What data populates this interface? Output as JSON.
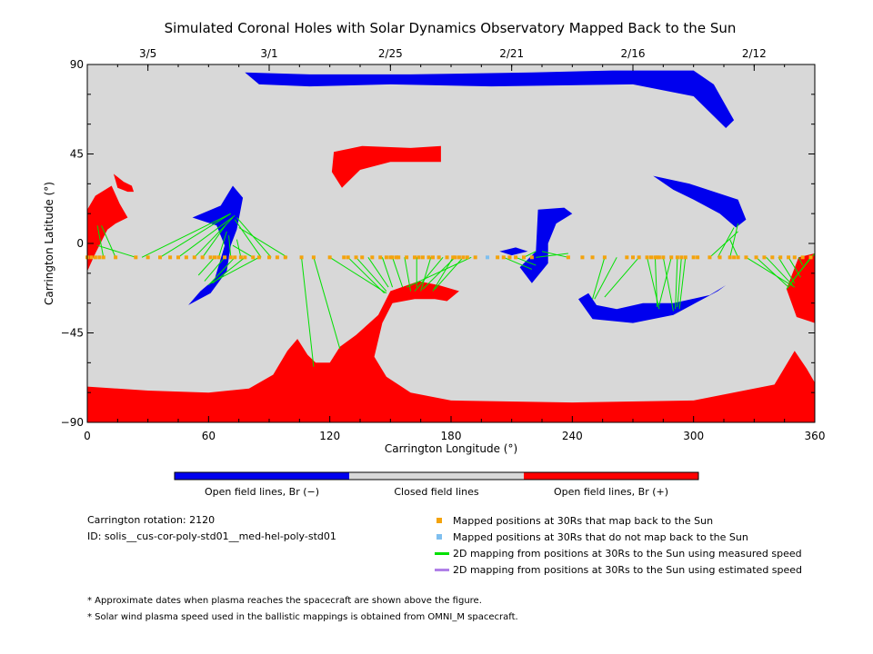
{
  "chart_data": {
    "type": "map",
    "title": "Simulated Coronal Holes with Solar Dynamics Observatory Mapped Back to the Sun",
    "xlabel": "Carrington Longitude (°)",
    "ylabel": "Carrington Latitude (°)",
    "xlim": [
      0,
      360
    ],
    "ylim": [
      -90,
      90
    ],
    "x_ticks": [
      "0",
      "60",
      "120",
      "180",
      "240",
      "300",
      "360"
    ],
    "y_ticks": [
      "90",
      "45",
      "0",
      "-45",
      "-90"
    ],
    "top_axis_dates": [
      {
        "label": "3/5",
        "lon": 30
      },
      {
        "label": "3/1",
        "lon": 90
      },
      {
        "label": "2/25",
        "lon": 150
      },
      {
        "label": "2/21",
        "lon": 210
      },
      {
        "label": "2/16",
        "lon": 270
      },
      {
        "label": "2/12",
        "lon": 330
      }
    ],
    "colors": {
      "closed": "#d8d8d8",
      "open_negative": "#0000ee",
      "open_positive": "#ff0000",
      "orange_point": "#f4a30c",
      "blue_point": "#7fbfef",
      "green_line": "#00e000",
      "purple_line": "#b080e8"
    },
    "regions": [
      {
        "polarity": "negative",
        "points": [
          [
            78,
            86
          ],
          [
            110,
            85
          ],
          [
            160,
            85
          ],
          [
            220,
            86
          ],
          [
            260,
            87
          ],
          [
            300,
            87
          ],
          [
            310,
            80
          ],
          [
            320,
            62
          ],
          [
            316,
            58
          ],
          [
            300,
            74
          ],
          [
            270,
            80
          ],
          [
            200,
            79
          ],
          [
            150,
            80
          ],
          [
            110,
            79
          ],
          [
            85,
            80
          ]
        ]
      },
      {
        "polarity": "negative",
        "points": [
          [
            280,
            34
          ],
          [
            298,
            30
          ],
          [
            322,
            22
          ],
          [
            326,
            12
          ],
          [
            321,
            8
          ],
          [
            313,
            15
          ],
          [
            300,
            22
          ],
          [
            290,
            27
          ]
        ]
      },
      {
        "polarity": "negative",
        "points": [
          [
            52,
            13
          ],
          [
            66,
            19
          ],
          [
            72,
            29
          ],
          [
            77,
            23
          ],
          [
            74,
            7
          ],
          [
            71,
            -1
          ],
          [
            69,
            -14
          ],
          [
            61,
            -25
          ],
          [
            50,
            -31
          ],
          [
            56,
            -24
          ],
          [
            63,
            -18
          ],
          [
            68,
            -1
          ],
          [
            64,
            9
          ]
        ]
      },
      {
        "polarity": "negative",
        "points": [
          [
            223,
            17
          ],
          [
            236,
            18
          ],
          [
            240,
            15
          ],
          [
            232,
            10
          ],
          [
            228,
            0
          ],
          [
            228,
            -10
          ],
          [
            220,
            -20
          ],
          [
            214,
            -12
          ],
          [
            222,
            -4
          ]
        ]
      },
      {
        "polarity": "negative",
        "points": [
          [
            243,
            -28
          ],
          [
            250,
            -38
          ],
          [
            270,
            -40
          ],
          [
            290,
            -36
          ],
          [
            312,
            -24
          ],
          [
            316,
            -21
          ],
          [
            308,
            -26
          ],
          [
            290,
            -30
          ],
          [
            275,
            -30
          ],
          [
            262,
            -33
          ],
          [
            252,
            -31
          ],
          [
            248,
            -25
          ]
        ]
      },
      {
        "polarity": "negative",
        "points": [
          [
            204,
            -4
          ],
          [
            212,
            -2
          ],
          [
            218,
            -4
          ],
          [
            210,
            -6
          ]
        ]
      },
      {
        "polarity": "positive",
        "points": [
          [
            122,
            46
          ],
          [
            136,
            49
          ],
          [
            160,
            48
          ],
          [
            175,
            49
          ],
          [
            175,
            41
          ],
          [
            165,
            41
          ],
          [
            150,
            41
          ],
          [
            135,
            37
          ],
          [
            126,
            28
          ],
          [
            121,
            36
          ]
        ]
      },
      {
        "polarity": "positive",
        "points": [
          [
            0,
            17
          ],
          [
            4,
            24
          ],
          [
            12,
            29
          ],
          [
            16,
            20
          ],
          [
            20,
            13
          ],
          [
            14,
            10
          ],
          [
            10,
            7
          ],
          [
            4,
            -5
          ],
          [
            0,
            -14
          ]
        ]
      },
      {
        "polarity": "positive",
        "points": [
          [
            13,
            35
          ],
          [
            18,
            31
          ],
          [
            22,
            29
          ],
          [
            23,
            26
          ],
          [
            20,
            26
          ],
          [
            15,
            28
          ]
        ]
      },
      {
        "polarity": "positive",
        "points": [
          [
            346,
            -23
          ],
          [
            352,
            -7
          ],
          [
            360,
            -5
          ],
          [
            360,
            -40
          ],
          [
            351,
            -37
          ]
        ]
      },
      {
        "polarity": "positive",
        "points": [
          [
            0,
            -72
          ],
          [
            30,
            -74
          ],
          [
            60,
            -75
          ],
          [
            80,
            -73
          ],
          [
            92,
            -66
          ],
          [
            99,
            -54
          ],
          [
            104,
            -48
          ],
          [
            109,
            -56
          ],
          [
            113,
            -60
          ],
          [
            120,
            -60
          ],
          [
            125,
            -52
          ],
          [
            133,
            -46
          ],
          [
            144,
            -36
          ],
          [
            150,
            -24
          ],
          [
            164,
            -19
          ],
          [
            174,
            -21
          ],
          [
            184,
            -24
          ],
          [
            178,
            -29
          ],
          [
            172,
            -28
          ],
          [
            162,
            -28
          ],
          [
            151,
            -30
          ],
          [
            146,
            -40
          ],
          [
            142,
            -57
          ],
          [
            148,
            -67
          ],
          [
            160,
            -75
          ],
          [
            180,
            -79
          ],
          [
            240,
            -80
          ],
          [
            300,
            -79
          ],
          [
            340,
            -71
          ],
          [
            350,
            -54
          ],
          [
            356,
            -63
          ],
          [
            360,
            -70
          ],
          [
            360,
            -90
          ],
          [
            0,
            -90
          ]
        ]
      }
    ],
    "mapped_points": {
      "orange_lons": [
        0,
        2,
        4,
        6,
        8,
        14,
        24,
        30,
        36,
        41,
        45,
        49,
        53,
        57,
        61,
        63,
        65,
        68,
        71,
        73,
        76,
        78,
        82,
        85,
        90,
        94,
        98,
        106,
        112,
        120,
        127,
        129,
        133,
        136,
        141,
        145,
        148,
        150,
        151,
        153,
        154,
        158,
        162,
        164,
        166,
        169,
        171,
        174,
        178,
        181,
        182,
        184,
        186,
        188,
        192,
        203,
        206,
        209,
        212,
        216,
        220,
        238,
        245,
        250,
        256,
        267,
        270,
        273,
        277,
        279,
        281,
        282,
        283,
        285,
        289,
        292,
        294,
        296,
        300,
        302,
        308,
        313,
        318,
        320,
        322,
        326,
        331,
        335,
        339,
        343,
        347,
        350,
        354,
        358
      ],
      "blue_lons": [
        198
      ],
      "latitude": -7
    },
    "field_lines_measured": [
      [
        [
          8,
          -7
        ],
        [
          5,
          9
        ]
      ],
      [
        [
          14,
          -7
        ],
        [
          7,
          9
        ]
      ],
      [
        [
          24,
          -7
        ],
        [
          5,
          -1
        ]
      ],
      [
        [
          27,
          -7
        ],
        [
          71,
          15
        ]
      ],
      [
        [
          36,
          -7
        ],
        [
          71,
          15
        ]
      ],
      [
        [
          45,
          -7
        ],
        [
          73,
          14
        ]
      ],
      [
        [
          53,
          -7
        ],
        [
          72,
          13
        ]
      ],
      [
        [
          57,
          -7
        ],
        [
          69,
          10
        ]
      ],
      [
        [
          65,
          -7
        ],
        [
          69,
          6
        ]
      ],
      [
        [
          71,
          -7
        ],
        [
          70,
          4
        ]
      ],
      [
        [
          76,
          -7
        ],
        [
          74,
          2
        ]
      ],
      [
        [
          82,
          -7
        ],
        [
          72,
          -1
        ]
      ],
      [
        [
          63,
          -7
        ],
        [
          55,
          -16
        ]
      ],
      [
        [
          68,
          -7
        ],
        [
          58,
          -19
        ]
      ],
      [
        [
          73,
          -7
        ],
        [
          60,
          -21
        ]
      ],
      [
        [
          78,
          -7
        ],
        [
          62,
          -20
        ]
      ],
      [
        [
          85,
          -7
        ],
        [
          61,
          -20
        ]
      ],
      [
        [
          91,
          -7
        ],
        [
          74,
          13
        ]
      ],
      [
        [
          99,
          -7
        ],
        [
          75,
          8
        ]
      ],
      [
        [
          86,
          -7
        ],
        [
          73,
          12
        ]
      ],
      [
        [
          106,
          -7
        ],
        [
          112,
          -62
        ]
      ],
      [
        [
          112,
          -7
        ],
        [
          125,
          -53
        ]
      ],
      [
        [
          120,
          -7
        ],
        [
          148,
          -25
        ]
      ],
      [
        [
          129,
          -7
        ],
        [
          147,
          -25
        ]
      ],
      [
        [
          133,
          -7
        ],
        [
          148,
          -24
        ]
      ],
      [
        [
          139,
          -7
        ],
        [
          149,
          -22
        ]
      ],
      [
        [
          146,
          -7
        ],
        [
          151,
          -22
        ]
      ],
      [
        [
          151,
          -7
        ],
        [
          156,
          -22
        ]
      ],
      [
        [
          157,
          -7
        ],
        [
          160,
          -24
        ]
      ],
      [
        [
          163,
          -7
        ],
        [
          163,
          -22
        ]
      ],
      [
        [
          170,
          -7
        ],
        [
          165,
          -24
        ]
      ],
      [
        [
          176,
          -7
        ],
        [
          162,
          -24
        ]
      ],
      [
        [
          182,
          -7
        ],
        [
          166,
          -23
        ]
      ],
      [
        [
          186,
          -7
        ],
        [
          172,
          -23
        ]
      ],
      [
        [
          190,
          -7
        ],
        [
          158,
          -22
        ]
      ],
      [
        [
          181,
          -7
        ],
        [
          171,
          -24
        ]
      ],
      [
        [
          206,
          -7
        ],
        [
          220,
          -13
        ]
      ],
      [
        [
          212,
          -7
        ],
        [
          222,
          -11
        ]
      ],
      [
        [
          216,
          -7
        ],
        [
          222,
          -4
        ]
      ],
      [
        [
          222,
          -7
        ],
        [
          238,
          -5
        ]
      ],
      [
        [
          238,
          -7
        ],
        [
          225,
          -4
        ]
      ],
      [
        [
          256,
          -7
        ],
        [
          250,
          -28
        ]
      ],
      [
        [
          262,
          -7
        ],
        [
          251,
          -28
        ]
      ],
      [
        [
          273,
          -7
        ],
        [
          256,
          -27
        ]
      ],
      [
        [
          277,
          -7
        ],
        [
          283,
          -33
        ]
      ],
      [
        [
          281,
          -7
        ],
        [
          282,
          -32
        ]
      ],
      [
        [
          285,
          -7
        ],
        [
          290,
          -34
        ]
      ],
      [
        [
          289,
          -7
        ],
        [
          283,
          -31
        ]
      ],
      [
        [
          292,
          -7
        ],
        [
          291,
          -33
        ]
      ],
      [
        [
          294,
          -7
        ],
        [
          292,
          -32
        ]
      ],
      [
        [
          296,
          -7
        ],
        [
          293,
          -33
        ]
      ],
      [
        [
          308,
          -7
        ],
        [
          322,
          6
        ]
      ],
      [
        [
          312,
          -7
        ],
        [
          320,
          8
        ]
      ],
      [
        [
          318,
          -7
        ],
        [
          322,
          10
        ]
      ],
      [
        [
          322,
          -7
        ],
        [
          318,
          2
        ]
      ],
      [
        [
          326,
          -7
        ],
        [
          350,
          -22
        ]
      ],
      [
        [
          331,
          -7
        ],
        [
          347,
          -22
        ]
      ],
      [
        [
          336,
          -7
        ],
        [
          349,
          -21
        ]
      ],
      [
        [
          342,
          -7
        ],
        [
          350,
          -20
        ]
      ],
      [
        [
          347,
          -7
        ],
        [
          353,
          -17
        ]
      ],
      [
        [
          352,
          -7
        ],
        [
          354,
          -11
        ]
      ],
      [
        [
          358,
          -7
        ],
        [
          346,
          -23
        ]
      ],
      [
        [
          360,
          -5
        ],
        [
          348,
          -20
        ]
      ]
    ],
    "field_lines_estimated": []
  },
  "colorbar": {
    "labels": [
      "Open field lines, Br (−)",
      "Closed field lines",
      "Open field lines, Br (+)"
    ]
  },
  "info": {
    "rotation": "Carrington rotation: 2120",
    "id": "ID: solis__cus-cor-poly-std01__med-hel-poly-std01"
  },
  "legend": [
    {
      "type": "square",
      "color": "#f4a30c",
      "label": "Mapped positions at 30Rs that map back to the Sun"
    },
    {
      "type": "square",
      "color": "#7fbfef",
      "label": "Mapped positions at 30Rs that do not map back to the Sun"
    },
    {
      "type": "line",
      "color": "#00e000",
      "label": "2D mapping from positions at 30Rs to the Sun using measured speed"
    },
    {
      "type": "line",
      "color": "#b080e8",
      "label": "2D mapping from positions at 30Rs to the Sun using estimated speed"
    }
  ],
  "notes": [
    "* Approximate dates when plasma reaches the spacecraft are shown above the figure.",
    "* Solar wind plasma speed used in the ballistic mappings is obtained from OMNI_M spacecraft."
  ]
}
